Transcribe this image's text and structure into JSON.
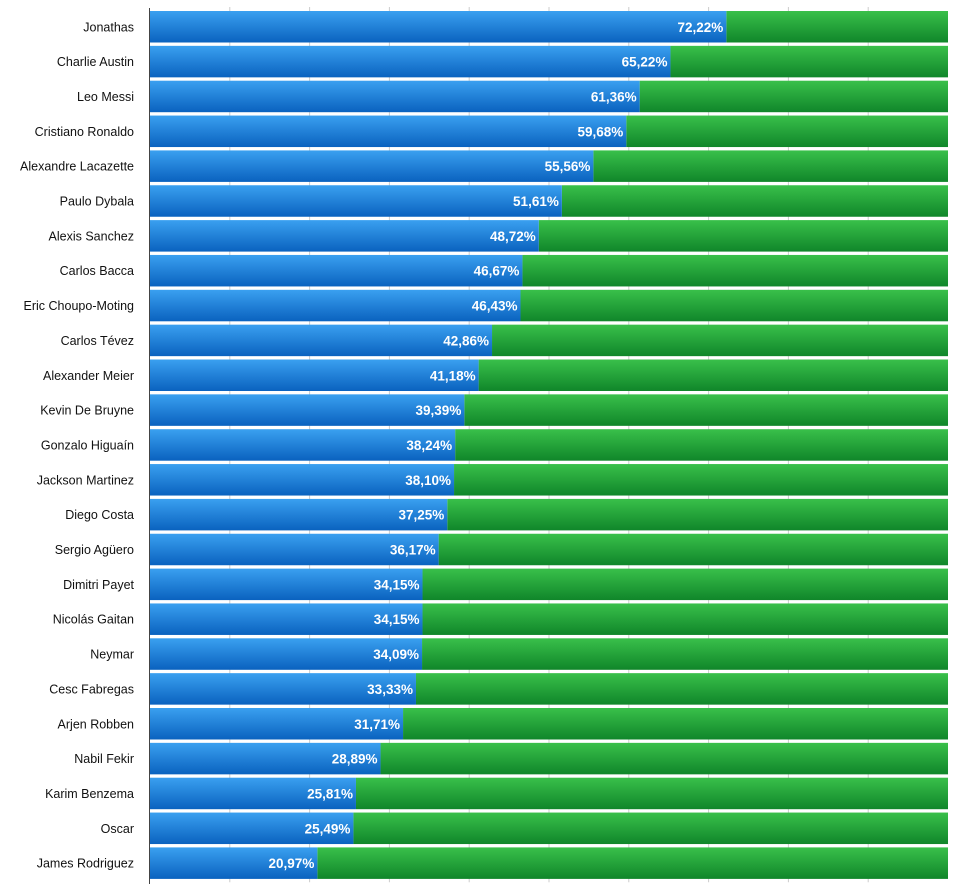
{
  "chart_data": {
    "type": "bar",
    "orientation": "horizontal",
    "stacked": true,
    "categories": [
      "Jonathas",
      "Charlie Austin",
      "Leo Messi",
      "Cristiano Ronaldo",
      "Alexandre Lacazette",
      "Paulo Dybala",
      "Alexis Sanchez",
      "Carlos Bacca",
      "Eric Choupo-Moting",
      "Carlos Tévez",
      "Alexander Meier",
      "Kevin De Bruyne",
      "Gonzalo Higuaín",
      "Jackson Martinez",
      "Diego Costa",
      "Sergio Agüero",
      "Dimitri Payet",
      "Nicolás Gaitan",
      "Neymar",
      "Cesc Fabregas",
      "Arjen Robben",
      "Nabil Fekir",
      "Karim Benzema",
      "Oscar",
      "James Rodriguez"
    ],
    "values": [
      72.22,
      65.22,
      61.36,
      59.68,
      55.56,
      51.61,
      48.72,
      46.67,
      46.43,
      42.86,
      41.18,
      39.39,
      38.24,
      38.1,
      37.25,
      36.17,
      34.15,
      34.15,
      34.09,
      33.33,
      31.71,
      28.89,
      25.81,
      25.49,
      20.97
    ],
    "value_labels": [
      "72,22%",
      "65,22%",
      "61,36%",
      "59,68%",
      "55,56%",
      "51,61%",
      "48,72%",
      "46,67%",
      "46,43%",
      "42,86%",
      "41,18%",
      "39,39%",
      "38,24%",
      "38,10%",
      "37,25%",
      "36,17%",
      "34,15%",
      "34,15%",
      "34,09%",
      "33,33%",
      "31,71%",
      "28,89%",
      "25,81%",
      "25,49%",
      "20,97%"
    ],
    "xlim": [
      0,
      100
    ],
    "grid": true,
    "colors": {
      "primary_top": "#3aa0f0",
      "primary_bottom": "#0a62bf",
      "remainder_top": "#39c04a",
      "remainder_bottom": "#10862a",
      "gridline": "#cccccc",
      "axis": "#444444"
    }
  }
}
